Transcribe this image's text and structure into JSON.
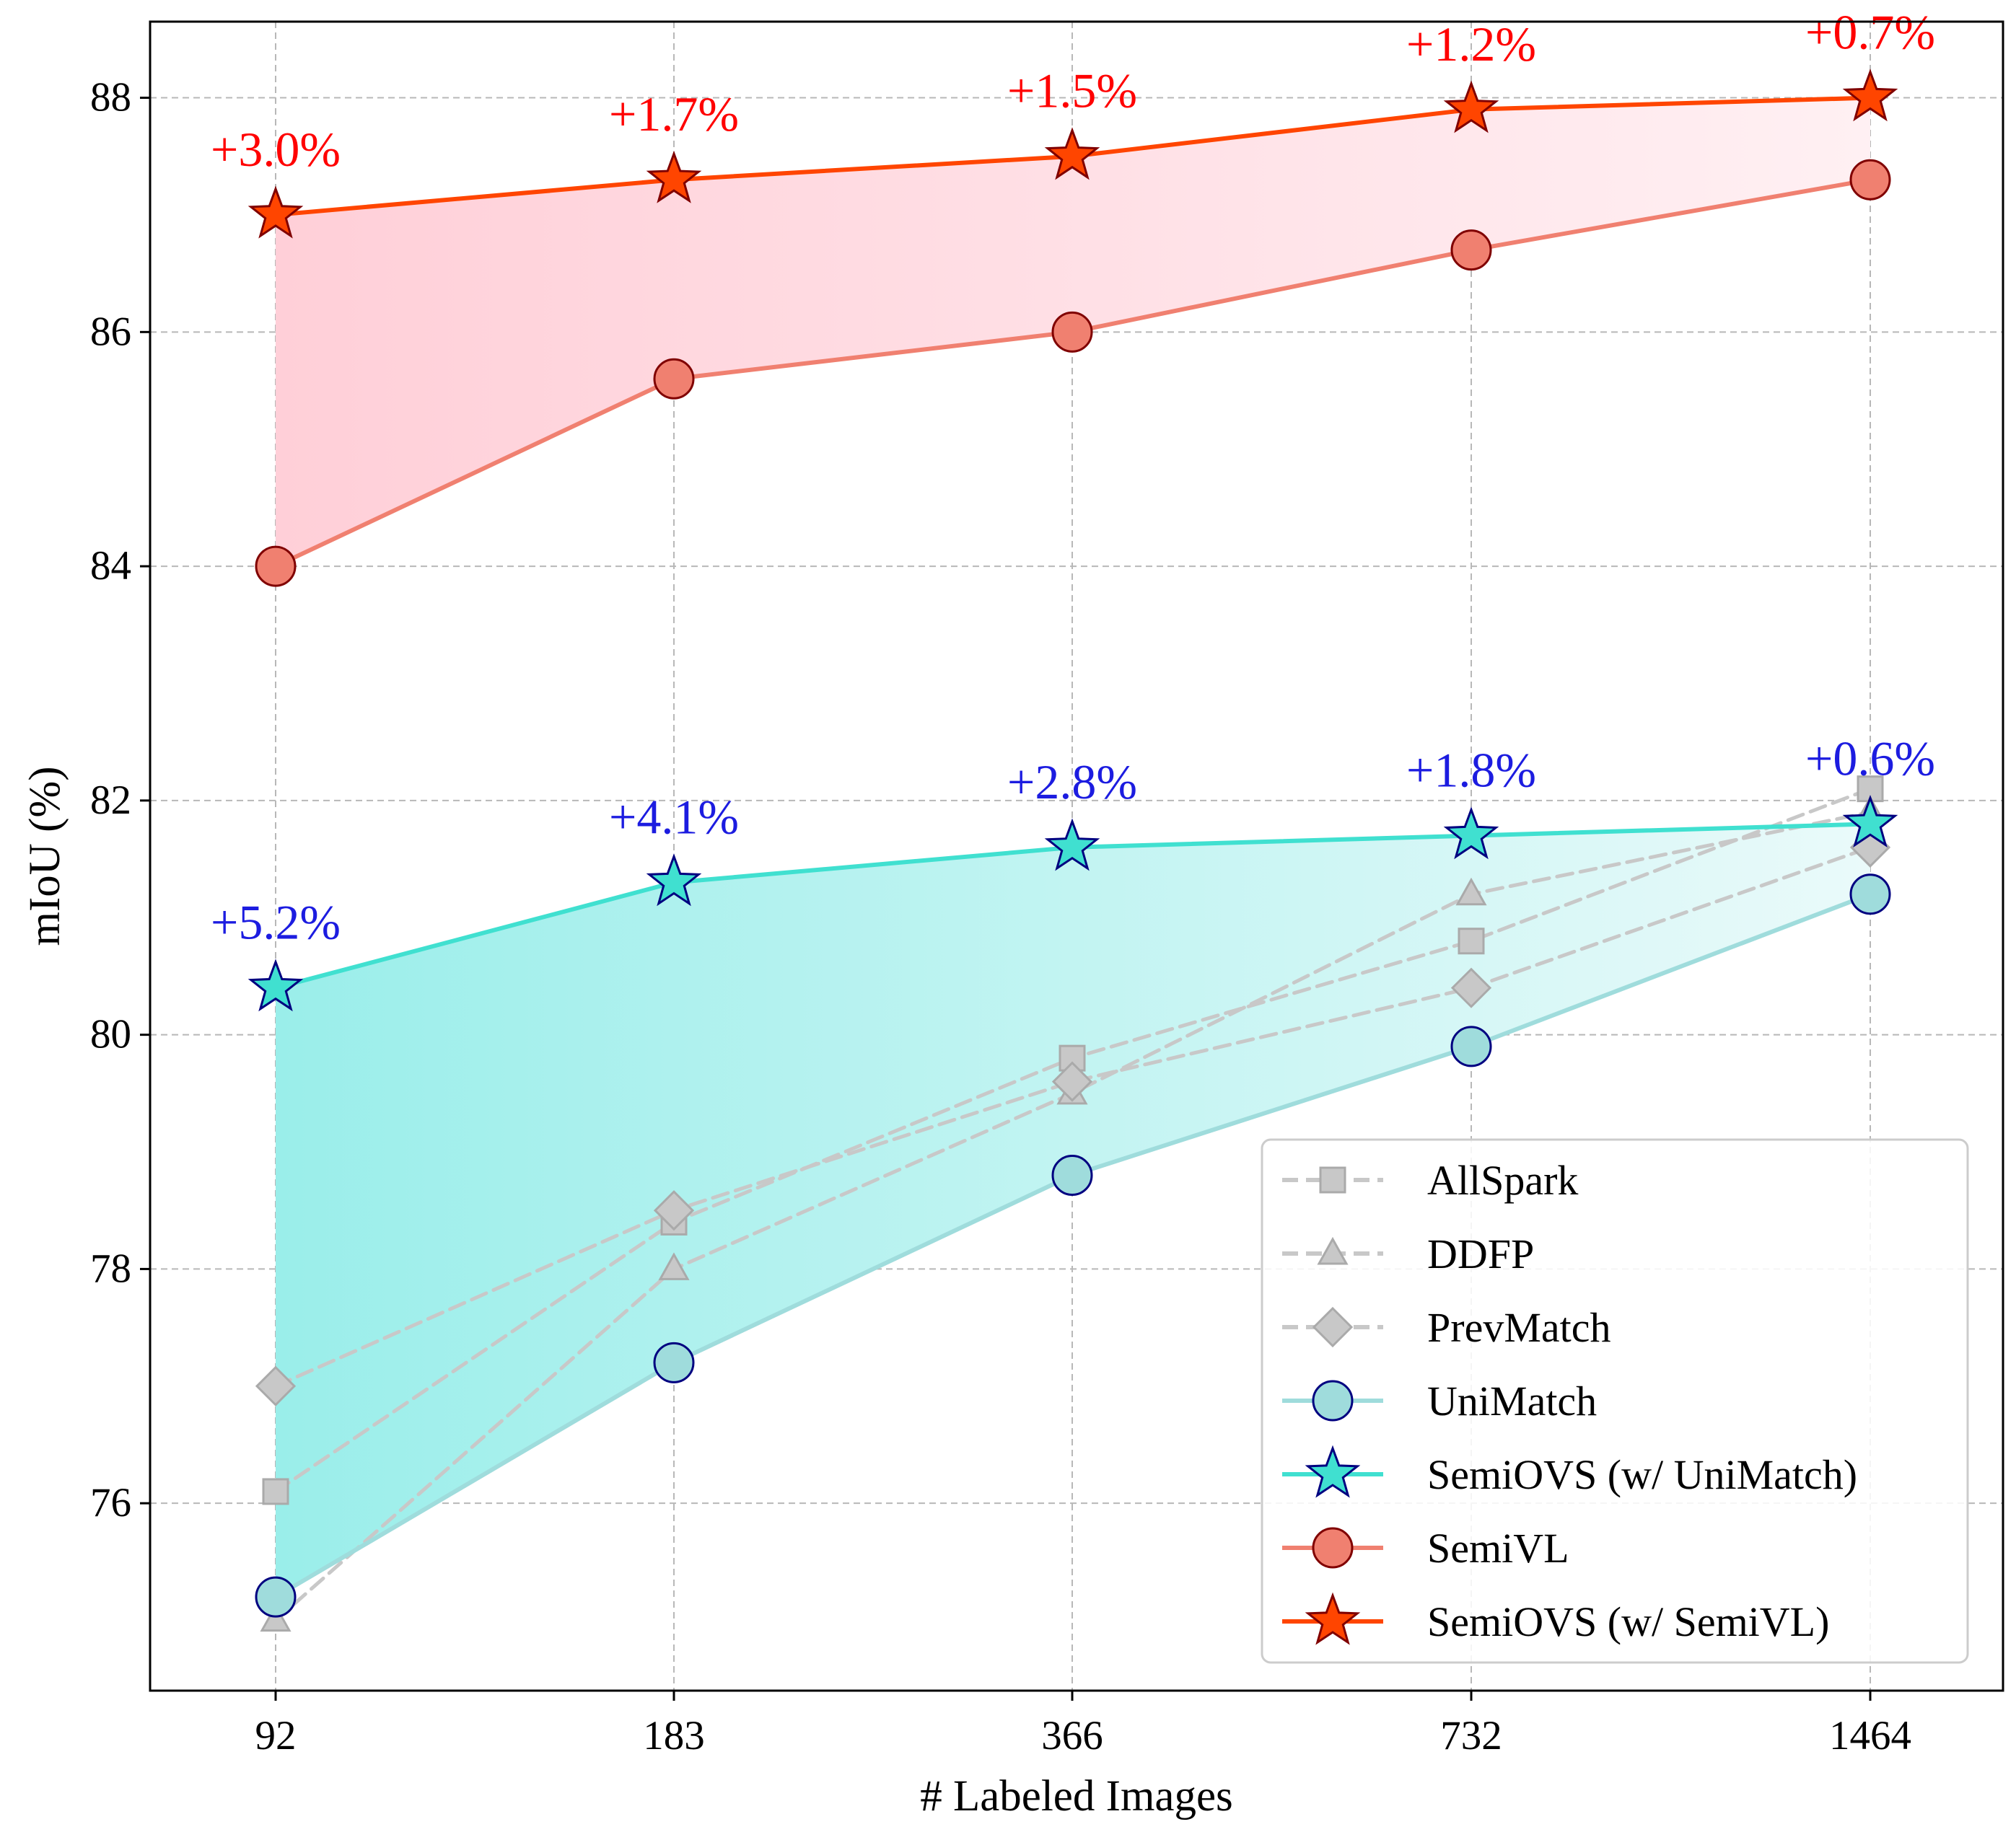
{
  "chart_data": {
    "type": "line",
    "title": "",
    "xlabel": "# Labeled Images",
    "ylabel": "mIoU (%)",
    "categories": [
      "92",
      "183",
      "366",
      "732",
      "1464"
    ],
    "ylim": [
      74.4,
      88.65
    ],
    "yticks": [
      76,
      78,
      80,
      82,
      84,
      86,
      88
    ],
    "grid": true,
    "legend_position": "bottom-right",
    "series": [
      {
        "name": "AllSpark",
        "values": [
          76.1,
          78.4,
          79.8,
          80.8,
          82.1
        ],
        "color": "#c8c8c8",
        "marker": "square",
        "style": "dashed"
      },
      {
        "name": "DDFP",
        "values": [
          75.0,
          78.0,
          79.5,
          81.2,
          81.9
        ],
        "color": "#c8c8c8",
        "marker": "triangle",
        "style": "dashed"
      },
      {
        "name": "PrevMatch",
        "values": [
          77.0,
          78.5,
          79.6,
          80.4,
          81.6
        ],
        "color": "#c8c8c8",
        "marker": "diamond",
        "style": "dashed"
      },
      {
        "name": "UniMatch",
        "values": [
          75.2,
          77.2,
          78.8,
          79.9,
          81.2
        ],
        "color": "#9fdcdc",
        "marker": "circle",
        "style": "solid"
      },
      {
        "name": "SemiOVS (w/ UniMatch)",
        "values": [
          80.4,
          81.3,
          81.6,
          81.7,
          81.8
        ],
        "color": "#40e0d0",
        "marker": "star",
        "style": "solid"
      },
      {
        "name": "SemiVL",
        "values": [
          84.0,
          85.6,
          86.0,
          86.7,
          87.3
        ],
        "color": "#f08070",
        "marker": "circle",
        "style": "solid"
      },
      {
        "name": "SemiOVS (w/ SemiVL)",
        "values": [
          87.0,
          87.3,
          87.5,
          87.9,
          88.0
        ],
        "color": "#ff4500",
        "marker": "star",
        "style": "solid"
      }
    ],
    "annotations": [
      {
        "series": "SemiOVS (w/ SemiVL)",
        "color": "#ff0000",
        "labels": [
          "+3.0%",
          "+1.7%",
          "+1.5%",
          "+1.2%",
          "+0.7%"
        ]
      },
      {
        "series": "SemiOVS (w/ UniMatch)",
        "color": "#1c1ce0",
        "labels": [
          "+5.2%",
          "+4.1%",
          "+2.8%",
          "+1.8%",
          "+0.6%"
        ]
      }
    ],
    "fills": [
      {
        "between": [
          "SemiVL",
          "SemiOVS (w/ SemiVL)"
        ],
        "color_left": "#ffcfd8",
        "color_right": "#fff0f3"
      },
      {
        "between": [
          "UniMatch",
          "SemiOVS (w/ UniMatch)"
        ],
        "color_left": "#9aeeea",
        "color_right": "#eafafa"
      }
    ]
  }
}
